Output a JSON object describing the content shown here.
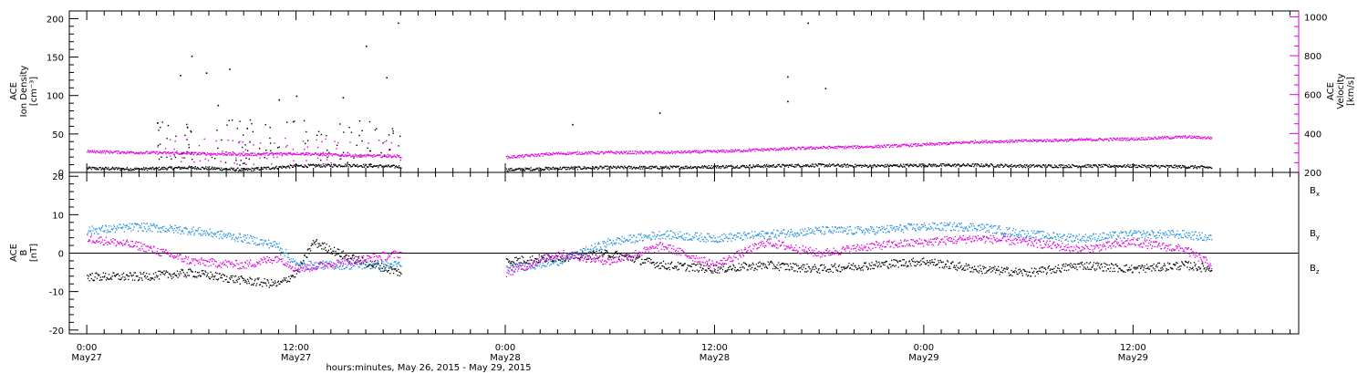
{
  "chart_data": [
    {
      "type": "scatter",
      "panel": "top",
      "title": "",
      "xlabel": "hours:minutes, May 26, 2015 - May 29, 2015",
      "ylabel_left": [
        "ACE",
        "Ion Density",
        "[cm⁻³]"
      ],
      "ylabel_right": [
        "ACE",
        "Velocity",
        "[km/s]"
      ],
      "ylim_left": [
        0,
        210
      ],
      "ylim_right": [
        200,
        1030
      ],
      "yticks_left": [
        "0",
        "50",
        "100",
        "150",
        "200"
      ],
      "yticks_right": [
        "200",
        "400",
        "600",
        "800",
        "1000"
      ],
      "colors": {
        "density": "#000000",
        "velocity": "#e000e0"
      },
      "series": [
        {
          "axis": "left",
          "x": [
            "00:00 May27",
            "03:00 May27",
            "06:00 May27",
            "09:00 May27",
            "12:00 May27",
            "15:00 May27",
            "18:00 May27",
            "21:00 May27",
            "00:00 May28",
            "03:00 May28",
            "06:00 May28",
            "09:00 May28",
            "12:00 May28",
            "15:00 May28",
            "18:00 May28",
            "21:00 May28",
            "00:00 May29",
            "03:00 May29",
            "06:00 May29",
            "09:00 May29",
            "12:00 May29",
            "15:00 May29",
            "16:30 May29"
          ],
          "values": [
            6,
            5,
            7,
            4,
            9,
            10,
            8,
            null,
            4,
            6,
            7,
            7,
            8,
            9,
            10,
            9,
            10,
            10,
            9,
            9,
            9,
            8,
            7
          ]
        },
        {
          "axis": "right",
          "x": [
            "00:00 May27",
            "03:00 May27",
            "06:00 May27",
            "09:00 May27",
            "12:00 May27",
            "15:00 May27",
            "18:00 May27",
            "21:00 May27",
            "00:00 May28",
            "03:00 May28",
            "06:00 May28",
            "09:00 May28",
            "12:00 May28",
            "15:00 May28",
            "18:00 May28",
            "21:00 May28",
            "00:00 May29",
            "03:00 May29",
            "06:00 May29",
            "09:00 May29",
            "12:00 May29",
            "15:00 May29",
            "16:30 May29"
          ],
          "values": [
            310,
            305,
            300,
            295,
            300,
            290,
            285,
            null,
            280,
            300,
            305,
            305,
            310,
            320,
            330,
            335,
            345,
            360,
            365,
            370,
            375,
            385,
            380
          ]
        }
      ],
      "sparse_points": [
        {
          "x": "05:20 May27",
          "y": 127
        },
        {
          "x": "06:00 May27",
          "y": 152
        },
        {
          "x": "06:50 May27",
          "y": 130
        },
        {
          "x": "07:30 May27",
          "y": 88
        },
        {
          "x": "08:10 May27",
          "y": 135
        },
        {
          "x": "09:10 May27",
          "y": 58
        },
        {
          "x": "11:00 May27",
          "y": 95
        },
        {
          "x": "12:00 May27",
          "y": 100
        },
        {
          "x": "14:40 May27",
          "y": 98
        },
        {
          "x": "16:00 May27",
          "y": 165
        },
        {
          "x": "17:10 May27",
          "y": 124
        },
        {
          "x": "17:50 May27",
          "y": 195
        },
        {
          "x": "03:50 May28",
          "y": 63
        },
        {
          "x": "08:50 May28",
          "y": 78
        },
        {
          "x": "16:10 May28",
          "y": 125
        },
        {
          "x": "17:20 May28",
          "y": 195
        },
        {
          "x": "18:20 May28",
          "y": 110
        },
        {
          "x": "16:10 May28",
          "y": 93
        }
      ]
    },
    {
      "type": "scatter",
      "panel": "bottom",
      "title": "",
      "xlabel": "hours:minutes, May 26, 2015 - May 29, 2015",
      "ylabel_left": [
        "ACE",
        "B",
        "[nT]"
      ],
      "ylim": [
        -21,
        21
      ],
      "yticks": [
        "20",
        "10",
        "0",
        "-10",
        "-20"
      ],
      "series": [
        {
          "name": "Bx",
          "color": "#000000",
          "x": [
            "00:00 May27",
            "03:00 May27",
            "06:00 May27",
            "09:00 May27",
            "11:00 May27",
            "12:00 May27",
            "13:00 May27",
            "15:00 May27",
            "18:00 May27",
            "21:00 May27",
            "00:00 May28",
            "03:00 May28",
            "06:00 May28",
            "09:00 May28",
            "12:00 May28",
            "15:00 May28",
            "18:00 May28",
            "21:00 May28",
            "00:00 May29",
            "03:00 May29",
            "06:00 May29",
            "09:00 May29",
            "12:00 May29",
            "15:00 May29",
            "16:30 May29"
          ],
          "values": [
            -6,
            -6,
            -5,
            -7,
            -8,
            -5,
            3,
            -1,
            -5,
            null,
            -2,
            -1,
            0,
            -3,
            -4,
            -3,
            -4,
            -3,
            -2,
            -4,
            -5,
            -3,
            -4,
            -3,
            -4
          ]
        },
        {
          "name": "By",
          "color": "#1e90e0",
          "x": [
            "00:00 May27",
            "03:00 May27",
            "06:00 May27",
            "09:00 May27",
            "11:00 May27",
            "12:00 May27",
            "15:00 May27",
            "18:00 May27",
            "21:00 May27",
            "00:00 May28",
            "03:00 May28",
            "06:00 May28",
            "09:00 May28",
            "12:00 May28",
            "15:00 May28",
            "18:00 May28",
            "21:00 May28",
            "00:00 May29",
            "03:00 May29",
            "06:00 May29",
            "09:00 May29",
            "12:00 May29",
            "15:00 May29",
            "16:30 May29"
          ],
          "values": [
            6,
            7,
            6,
            4,
            2,
            -3,
            -3,
            -3,
            null,
            -4,
            -2,
            3,
            5,
            4,
            5,
            6,
            6,
            7,
            7,
            5,
            4,
            5,
            5,
            4
          ]
        },
        {
          "name": "Bz",
          "color": "#e000e0",
          "x": [
            "00:00 May27",
            "03:00 May27",
            "06:00 May27",
            "09:00 May27",
            "11:00 May27",
            "12:00 May27",
            "15:00 May27",
            "18:00 May27",
            "21:00 May27",
            "00:00 May28",
            "03:00 May28",
            "06:00 May28",
            "09:00 May28",
            "12:00 May28",
            "15:00 May28",
            "18:00 May28",
            "21:00 May28",
            "00:00 May29",
            "03:00 May29",
            "06:00 May29",
            "09:00 May29",
            "12:00 May29",
            "15:00 May29",
            "16:30 May29"
          ],
          "values": [
            4,
            2,
            -2,
            -3,
            -1,
            -4,
            -2,
            0,
            null,
            -5,
            0,
            -2,
            2,
            -3,
            3,
            0,
            2,
            3,
            4,
            3,
            1,
            3,
            1,
            -3
          ]
        }
      ],
      "legend": [
        "Bx",
        "By",
        "Bz"
      ],
      "zero_line": true
    }
  ],
  "x_axis": {
    "start": "23:00 May26",
    "end": "10:00 May29+",
    "tick_labels": [
      {
        "time": "0:00",
        "date": "May27"
      },
      {
        "time": "12:00",
        "date": "May27"
      },
      {
        "time": "0:00",
        "date": "May28"
      },
      {
        "time": "12:00",
        "date": "May28"
      },
      {
        "time": "0:00",
        "date": "May29"
      },
      {
        "time": "12:00",
        "date": "May29"
      }
    ],
    "title": "hours:minutes, May 26, 2015 - May 29, 2015"
  }
}
